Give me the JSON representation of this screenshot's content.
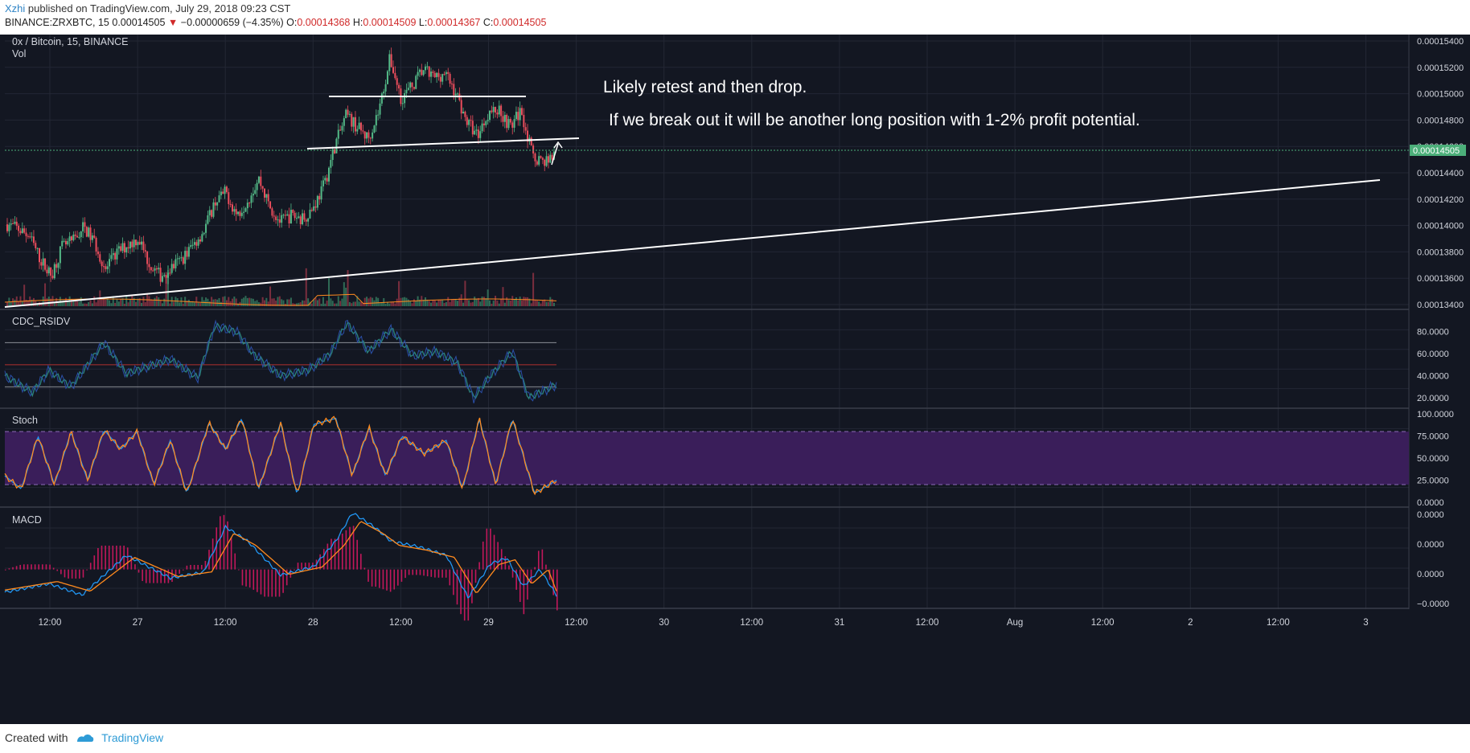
{
  "header": {
    "author": "Xzhi",
    "published_text": "published on TradingView.com, July 29, 2018 09:23 CST",
    "symbol_line": "BINANCE:ZRXBTC, 15",
    "last_price": "0.00014505",
    "change_arrow": "▼",
    "change": "−0.00000659 (−4.35%)",
    "o_label": "O:",
    "o_value": "0.00014368",
    "h_label": "H:",
    "h_value": "0.00014509",
    "l_label": "L:",
    "l_value": "0.00014367",
    "c_label": "C:",
    "c_value": "0.00014505"
  },
  "panes": {
    "main_title": "0x / Bitcoin, 15, BINANCE",
    "vol_label": "Vol",
    "rsi_label": "CDC_RSIDV",
    "stoch_label": "Stoch",
    "macd_label": "MACD"
  },
  "annotations": {
    "note1": "Likely retest and then drop.",
    "note2": "If we break out it will be another long position with 1-2% profit potential."
  },
  "price_badge": "0.00014505",
  "footer": {
    "created_with": "Created with",
    "brand": "TradingView"
  },
  "colors": {
    "background": "#131722",
    "up": "#53b987",
    "down": "#eb4d5c",
    "badge": "#4caf7a",
    "stoch_fill": "#3a1e5a",
    "macd_line": "#2196f3",
    "signal_line": "#ff8a1e",
    "rsi_line": "#2a7f7a"
  },
  "chart_data": {
    "type": "candlestick",
    "title": "0x / Bitcoin, 15, BINANCE",
    "x_ticks": [
      "12:00",
      "27",
      "12:00",
      "28",
      "12:00",
      "29",
      "12:00",
      "30",
      "12:00",
      "31",
      "12:00",
      "Aug",
      "12:00",
      "2",
      "12:00",
      "3"
    ],
    "price_axis": [
      "0.00015400",
      "0.00015200",
      "0.00015000",
      "0.00014800",
      "0.00014600",
      "0.00014400",
      "0.00014200",
      "0.00014000",
      "0.00013800",
      "0.00013600",
      "0.00013400"
    ],
    "price_range": [
      0.000132,
      0.000155
    ],
    "price_path": [
      [
        0.0,
        0.000139
      ],
      [
        0.02,
        0.0001386
      ],
      [
        0.04,
        0.000138
      ],
      [
        0.06,
        0.000136
      ],
      [
        0.08,
        0.0001345
      ],
      [
        0.1,
        0.000137
      ],
      [
        0.12,
        0.0001375
      ],
      [
        0.14,
        0.0001388
      ],
      [
        0.16,
        0.0001374
      ],
      [
        0.18,
        0.000135
      ],
      [
        0.2,
        0.0001365
      ],
      [
        0.22,
        0.0001372
      ],
      [
        0.24,
        0.0001378
      ],
      [
        0.26,
        0.0001355
      ],
      [
        0.28,
        0.0001345
      ],
      [
        0.3,
        0.0001352
      ],
      [
        0.32,
        0.000136
      ],
      [
        0.34,
        0.0001372
      ],
      [
        0.36,
        0.0001385
      ],
      [
        0.38,
        0.000141
      ],
      [
        0.4,
        0.0001418
      ],
      [
        0.42,
        0.0001398
      ],
      [
        0.44,
        0.0001412
      ],
      [
        0.46,
        0.000143
      ],
      [
        0.48,
        0.0001405
      ],
      [
        0.5,
        0.0001392
      ],
      [
        0.52,
        0.0001398
      ],
      [
        0.54,
        0.0001395
      ],
      [
        0.56,
        0.0001405
      ],
      [
        0.58,
        0.0001425
      ],
      [
        0.6,
        0.000146
      ],
      [
        0.62,
        0.0001485
      ],
      [
        0.64,
        0.0001475
      ],
      [
        0.66,
        0.0001465
      ],
      [
        0.68,
        0.000149
      ],
      [
        0.7,
        0.0001535
      ],
      [
        0.72,
        0.00015
      ],
      [
        0.74,
        0.000151
      ],
      [
        0.76,
        0.0001525
      ],
      [
        0.78,
        0.0001518
      ],
      [
        0.8,
        0.0001522
      ],
      [
        0.82,
        0.0001505
      ],
      [
        0.84,
        0.000148
      ],
      [
        0.86,
        0.0001468
      ],
      [
        0.88,
        0.0001488
      ],
      [
        0.9,
        0.000149
      ],
      [
        0.92,
        0.0001475
      ],
      [
        0.94,
        0.000149
      ],
      [
        0.96,
        0.000145
      ],
      [
        0.98,
        0.0001445
      ],
      [
        1.0,
        0.000145
      ]
    ],
    "rsi_axis": [
      "80.0000",
      "60.0000",
      "40.0000",
      "20.0000"
    ],
    "rsi_range": [
      15,
      95
    ],
    "rsi_levels": [
      70,
      50,
      30
    ],
    "rsi_path": [
      [
        0.0,
        40
      ],
      [
        0.05,
        25
      ],
      [
        0.08,
        45
      ],
      [
        0.12,
        30
      ],
      [
        0.18,
        70
      ],
      [
        0.22,
        42
      ],
      [
        0.3,
        55
      ],
      [
        0.35,
        38
      ],
      [
        0.38,
        85
      ],
      [
        0.42,
        80
      ],
      [
        0.45,
        60
      ],
      [
        0.5,
        40
      ],
      [
        0.55,
        45
      ],
      [
        0.59,
        60
      ],
      [
        0.62,
        88
      ],
      [
        0.66,
        62
      ],
      [
        0.7,
        82
      ],
      [
        0.74,
        58
      ],
      [
        0.78,
        62
      ],
      [
        0.82,
        52
      ],
      [
        0.85,
        20
      ],
      [
        0.88,
        40
      ],
      [
        0.92,
        62
      ],
      [
        0.95,
        20
      ],
      [
        1.0,
        32
      ]
    ],
    "stoch_axis": [
      "100.0000",
      "75.0000",
      "50.0000",
      "25.0000",
      "0.0000"
    ],
    "stoch_range": [
      0,
      100
    ],
    "stoch_levels": [
      80,
      20
    ],
    "stoch_path": [
      [
        0.0,
        30
      ],
      [
        0.03,
        15
      ],
      [
        0.06,
        75
      ],
      [
        0.09,
        20
      ],
      [
        0.12,
        80
      ],
      [
        0.15,
        25
      ],
      [
        0.18,
        82
      ],
      [
        0.21,
        60
      ],
      [
        0.24,
        80
      ],
      [
        0.27,
        20
      ],
      [
        0.3,
        70
      ],
      [
        0.33,
        10
      ],
      [
        0.37,
        90
      ],
      [
        0.4,
        60
      ],
      [
        0.43,
        95
      ],
      [
        0.46,
        15
      ],
      [
        0.5,
        90
      ],
      [
        0.53,
        8
      ],
      [
        0.56,
        88
      ],
      [
        0.6,
        95
      ],
      [
        0.63,
        30
      ],
      [
        0.66,
        85
      ],
      [
        0.69,
        30
      ],
      [
        0.72,
        75
      ],
      [
        0.76,
        55
      ],
      [
        0.8,
        70
      ],
      [
        0.83,
        15
      ],
      [
        0.86,
        95
      ],
      [
        0.89,
        20
      ],
      [
        0.92,
        95
      ],
      [
        0.96,
        10
      ],
      [
        1.0,
        25
      ]
    ],
    "macd_axis": [
      "0.0000",
      "0.0000",
      "0.0000",
      "−0.0000"
    ],
    "macd_range": [
      -1.2,
      2.0
    ],
    "macd_path": [
      [
        0.0,
        -0.8
      ],
      [
        0.08,
        -0.5
      ],
      [
        0.14,
        -0.9
      ],
      [
        0.22,
        0.5
      ],
      [
        0.3,
        -0.3
      ],
      [
        0.36,
        -0.1
      ],
      [
        0.4,
        1.5
      ],
      [
        0.44,
        1.0
      ],
      [
        0.5,
        -0.2
      ],
      [
        0.56,
        0.1
      ],
      [
        0.6,
        1.0
      ],
      [
        0.63,
        2.0
      ],
      [
        0.67,
        1.5
      ],
      [
        0.7,
        1.0
      ],
      [
        0.75,
        0.8
      ],
      [
        0.8,
        0.5
      ],
      [
        0.84,
        -1.0
      ],
      [
        0.88,
        0.2
      ],
      [
        0.91,
        0.4
      ],
      [
        0.94,
        -0.6
      ],
      [
        0.97,
        0.0
      ],
      [
        1.0,
        -0.9
      ]
    ]
  }
}
